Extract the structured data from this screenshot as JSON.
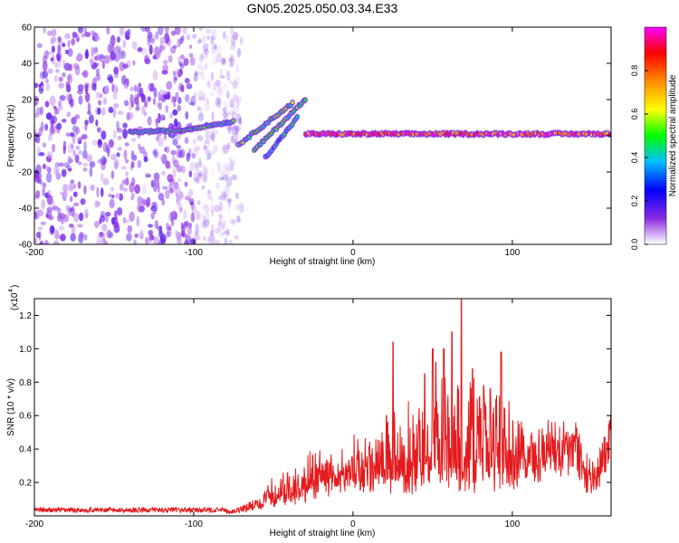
{
  "chart_data": [
    {
      "type": "heatmap",
      "title": "GN05.2025.050.03.34.E33",
      "xlabel": "Height of straight line (km)",
      "ylabel": "Frequency (Hz)",
      "xlim": [
        -200,
        162
      ],
      "ylim": [
        -60,
        60
      ],
      "xticks": [
        "-200",
        "-100",
        "0",
        "100"
      ],
      "xtick_values": [
        -200,
        -100,
        0,
        100
      ],
      "yticks": [
        "-60",
        "-40",
        "-20",
        "0",
        "20",
        "40",
        "60"
      ],
      "ytick_values": [
        -60,
        -40,
        -20,
        0,
        20,
        40,
        60
      ],
      "colorbar": {
        "label": "Normalized spectral amplitude",
        "range": [
          0,
          1
        ],
        "ticks": [
          "0.0",
          "0.2",
          "0.4",
          "0.6",
          "0.8"
        ],
        "tick_values": [
          0.0,
          0.2,
          0.4,
          0.6,
          0.8
        ],
        "colormap": [
          "#ffffff",
          "#8a2be2",
          "#0000ff",
          "#00bfff",
          "#00ff00",
          "#ffff00",
          "#ff8c00",
          "#ff0000",
          "#ff00ff"
        ]
      },
      "noise_region": {
        "x_range": [
          -200,
          -80
        ],
        "freq_range": [
          -60,
          60
        ],
        "amplitude": 0.15
      },
      "features": [
        {
          "name_hint": "carrier",
          "x_start": -140,
          "x_end": -75,
          "freq": [
            2,
            3,
            8
          ],
          "amplitude": 0.45
        },
        {
          "name_hint": "upper branch",
          "x_start": -72,
          "x_end": -38,
          "freq": [
            -5,
            18
          ],
          "amplitude": 0.5
        },
        {
          "name_hint": "middle branch",
          "x_start": -62,
          "x_end": -30,
          "freq": [
            -8,
            20
          ],
          "amplitude": 0.5
        },
        {
          "name_hint": "lower branch",
          "x_start": -55,
          "x_end": -35,
          "freq": [
            -12,
            10
          ],
          "amplitude": 0.4
        },
        {
          "name_hint": "steady line",
          "x_start": -30,
          "x_end": 162,
          "freq": [
            1,
            1
          ],
          "amplitude": 0.9
        }
      ]
    },
    {
      "type": "line",
      "xlabel": "Height of straight line (km)",
      "ylabel": "SNR (10 * v/v)",
      "yscale_label": "(x10",
      "yscale_exponent": "4",
      "xlim": [
        -200,
        162
      ],
      "ylim": [
        0,
        1.3
      ],
      "xticks": [
        "-200",
        "-100",
        "0",
        "100"
      ],
      "xtick_values": [
        -200,
        -100,
        0,
        100
      ],
      "yticks": [
        "0.2",
        "0.4",
        "0.6",
        "0.8",
        "1.0",
        "1.2"
      ],
      "ytick_values": [
        0.2,
        0.4,
        0.6,
        0.8,
        1.0,
        1.2
      ],
      "line_color": "#e41a1c",
      "envelope": {
        "x": [
          -200,
          -80,
          -70,
          -60,
          -50,
          -40,
          -30,
          -25,
          -20,
          -10,
          0,
          10,
          20,
          25,
          30,
          40,
          50,
          60,
          70,
          80,
          90,
          100,
          110,
          120,
          130,
          140,
          145,
          150,
          155,
          162
        ],
        "baseline": [
          0.02,
          0.02,
          0.03,
          0.06,
          0.1,
          0.12,
          0.15,
          0.2,
          0.25,
          0.28,
          0.25,
          0.3,
          0.35,
          0.3,
          0.3,
          0.3,
          0.32,
          0.35,
          0.3,
          0.32,
          0.3,
          0.35,
          0.45,
          0.48,
          0.5,
          0.55,
          0.35,
          0.25,
          0.4,
          0.6
        ],
        "peak": [
          0.05,
          0.05,
          0.07,
          0.12,
          0.25,
          0.3,
          0.35,
          0.45,
          0.42,
          0.4,
          0.5,
          0.55,
          0.6,
          0.75,
          0.65,
          0.8,
          0.9,
          0.95,
          0.85,
          0.9,
          0.85,
          0.75,
          0.6,
          0.58,
          0.58,
          0.62,
          0.48,
          0.35,
          0.5,
          0.65
        ]
      },
      "spikes": [
        {
          "x": 21,
          "y": 0.6
        },
        {
          "x": 25,
          "y": 1.04
        },
        {
          "x": 45,
          "y": 0.85
        },
        {
          "x": 50,
          "y": 1.0
        },
        {
          "x": 52,
          "y": 0.92
        },
        {
          "x": 57,
          "y": 1.0
        },
        {
          "x": 62,
          "y": 1.1
        },
        {
          "x": 68,
          "y": 1.3
        },
        {
          "x": 75,
          "y": 0.88
        },
        {
          "x": 82,
          "y": 0.78
        },
        {
          "x": 93,
          "y": 0.98
        },
        {
          "x": 150,
          "y": 0.18
        }
      ]
    }
  ]
}
